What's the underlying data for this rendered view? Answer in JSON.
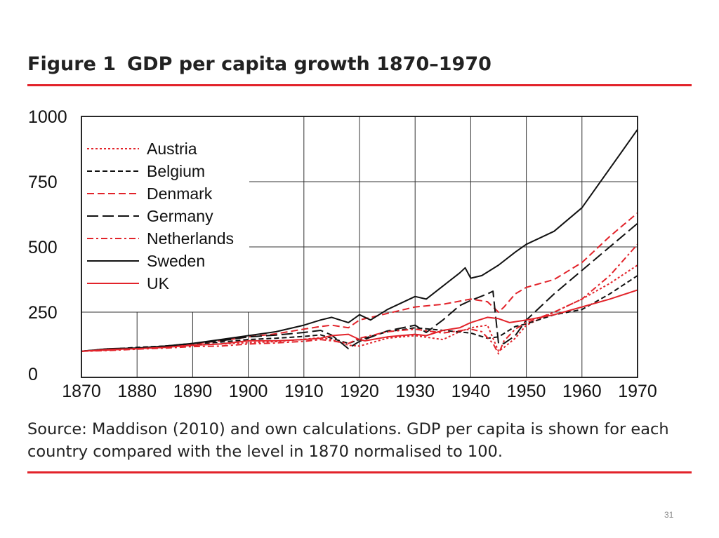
{
  "figure": {
    "label": "Figure 1",
    "title": "GDP per capita growth 1870–1970",
    "accent_color": "#e2232a"
  },
  "source_text": "Source: Maddison (2010) and own calculations. GDP per capita is shown for each country compared with the level in 1870 normalised to 100.",
  "slide_number": "31",
  "chart_data": {
    "type": "line",
    "title": "GDP per capita growth 1870–1970",
    "xlim": [
      1870,
      1970
    ],
    "ylim": [
      0,
      1000
    ],
    "x_ticks": [
      "1870",
      "1880",
      "1890",
      "1900",
      "1910",
      "1920",
      "1930",
      "1940",
      "1950",
      "1960",
      "1970"
    ],
    "y_ticks": [
      "0",
      "250",
      "500",
      "750",
      "1000"
    ],
    "grid": true,
    "legend_position": "top-left",
    "series": [
      {
        "name": "Austria",
        "color": "#e2232a",
        "style": "dotted",
        "x": [
          1870,
          1875,
          1880,
          1885,
          1890,
          1895,
          1900,
          1905,
          1910,
          1913,
          1915,
          1918,
          1920,
          1925,
          1930,
          1935,
          1938,
          1940,
          1943,
          1945,
          1946,
          1948,
          1950,
          1955,
          1960,
          1965,
          1970
        ],
        "y": [
          100,
          105,
          110,
          117,
          124,
          128,
          133,
          137,
          146,
          152,
          145,
          123,
          120,
          150,
          160,
          145,
          175,
          190,
          200,
          100,
          115,
          150,
          200,
          250,
          300,
          360,
          430
        ]
      },
      {
        "name": "Belgium",
        "color": "#111111",
        "style": "short-dash",
        "x": [
          1870,
          1875,
          1880,
          1885,
          1890,
          1895,
          1900,
          1905,
          1910,
          1913,
          1915,
          1918,
          1920,
          1925,
          1930,
          1935,
          1940,
          1943,
          1945,
          1948,
          1950,
          1955,
          1960,
          1965,
          1970
        ],
        "y": [
          100,
          108,
          115,
          120,
          128,
          135,
          145,
          150,
          157,
          163,
          150,
          130,
          145,
          175,
          190,
          180,
          170,
          150,
          155,
          195,
          205,
          240,
          260,
          320,
          390
        ]
      },
      {
        "name": "Denmark",
        "color": "#e2232a",
        "style": "dashed",
        "x": [
          1870,
          1875,
          1880,
          1885,
          1890,
          1895,
          1900,
          1905,
          1910,
          1913,
          1915,
          1918,
          1920,
          1925,
          1930,
          1935,
          1940,
          1943,
          1945,
          1946,
          1948,
          1950,
          1955,
          1960,
          1965,
          1970
        ],
        "y": [
          100,
          105,
          110,
          118,
          128,
          140,
          155,
          167,
          185,
          195,
          200,
          190,
          220,
          245,
          270,
          280,
          300,
          290,
          250,
          270,
          320,
          345,
          375,
          440,
          540,
          630
        ]
      },
      {
        "name": "Germany",
        "color": "#111111",
        "style": "long-dash",
        "x": [
          1870,
          1875,
          1880,
          1885,
          1890,
          1895,
          1900,
          1905,
          1910,
          1913,
          1915,
          1918,
          1919,
          1920,
          1925,
          1930,
          1932,
          1935,
          1938,
          1940,
          1943,
          1944,
          1945,
          1946,
          1948,
          1950,
          1955,
          1960,
          1965,
          1970
        ],
        "y": [
          100,
          110,
          112,
          120,
          130,
          140,
          155,
          162,
          172,
          180,
          162,
          110,
          125,
          138,
          178,
          200,
          172,
          220,
          275,
          295,
          320,
          330,
          130,
          130,
          160,
          220,
          320,
          410,
          500,
          590
        ]
      },
      {
        "name": "Netherlands",
        "color": "#e2232a",
        "style": "dash-dot",
        "x": [
          1870,
          1875,
          1880,
          1885,
          1890,
          1895,
          1900,
          1905,
          1910,
          1913,
          1915,
          1918,
          1920,
          1925,
          1930,
          1935,
          1940,
          1942,
          1944,
          1945,
          1946,
          1948,
          1950,
          1955,
          1960,
          1965,
          1970
        ],
        "y": [
          100,
          103,
          108,
          112,
          118,
          120,
          128,
          132,
          138,
          145,
          140,
          130,
          150,
          175,
          185,
          170,
          185,
          175,
          130,
          90,
          140,
          185,
          210,
          250,
          300,
          390,
          510
        ]
      },
      {
        "name": "Sweden",
        "color": "#111111",
        "style": "solid",
        "x": [
          1870,
          1875,
          1880,
          1885,
          1890,
          1895,
          1900,
          1905,
          1910,
          1913,
          1915,
          1918,
          1920,
          1922,
          1925,
          1930,
          1932,
          1935,
          1938,
          1939,
          1940,
          1942,
          1945,
          1948,
          1950,
          1955,
          1960,
          1965,
          1970
        ],
        "y": [
          100,
          110,
          112,
          120,
          130,
          145,
          160,
          175,
          200,
          220,
          230,
          210,
          240,
          220,
          260,
          310,
          300,
          350,
          400,
          420,
          380,
          390,
          430,
          480,
          510,
          560,
          650,
          800,
          950
        ]
      },
      {
        "name": "UK",
        "color": "#e2232a",
        "style": "solid",
        "x": [
          1870,
          1875,
          1880,
          1885,
          1890,
          1895,
          1900,
          1905,
          1910,
          1913,
          1915,
          1918,
          1920,
          1921,
          1925,
          1930,
          1932,
          1935,
          1938,
          1940,
          1943,
          1945,
          1947,
          1950,
          1955,
          1960,
          1965,
          1970
        ],
        "y": [
          100,
          107,
          110,
          115,
          123,
          128,
          140,
          140,
          145,
          150,
          160,
          165,
          145,
          140,
          155,
          165,
          160,
          180,
          190,
          210,
          230,
          225,
          210,
          220,
          240,
          270,
          300,
          335
        ]
      }
    ]
  }
}
